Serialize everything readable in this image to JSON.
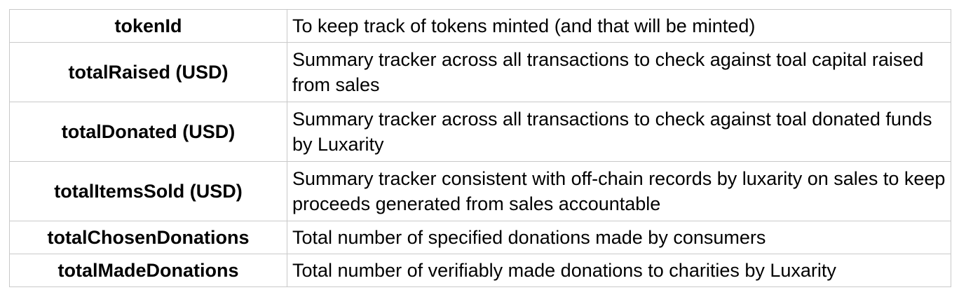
{
  "table": {
    "rows": [
      {
        "name": "tokenId",
        "description": "To keep track of tokens minted (and that will be minted)"
      },
      {
        "name": "totalRaised (USD)",
        "description": "Summary tracker across all transactions to check against toal capital raised from sales"
      },
      {
        "name": "totalDonated (USD)",
        "description": "Summary tracker across all transactions to check against toal donated funds by Luxarity"
      },
      {
        "name": "totalItemsSold (USD)",
        "description": "Summary tracker consistent with off-chain records by luxarity on sales to keep proceeds generated from sales accountable"
      },
      {
        "name": "totalChosenDonations",
        "description": "Total number of specified donations made by consumers"
      },
      {
        "name": "totalMadeDonations",
        "description": "Total number of verifiably made donations to charities by Luxarity"
      }
    ]
  }
}
